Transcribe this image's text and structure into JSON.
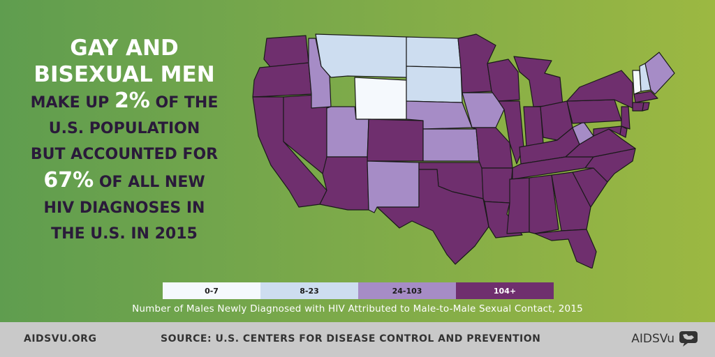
{
  "headline": {
    "line1": "GAY AND",
    "line2": "BISEXUAL MEN",
    "line3_a": "MAKE UP ",
    "line3_b": "2%",
    "line3_c": " OF THE",
    "line4": "U.S. POPULATION",
    "line5": "BUT ACCOUNTED FOR",
    "line6_a": "67%",
    "line6_b": " OF ALL NEW",
    "line7": "HIV DIAGNOSES IN",
    "line8": "THE U.S. IN 2015"
  },
  "colors": {
    "bin1": "#f5f9fd",
    "bin2": "#cdddf0",
    "bin3": "#a68cc6",
    "bin4": "#6f2f6e",
    "text_dark": "#2a1a3a"
  },
  "legend": {
    "bins": [
      {
        "label": "0-7"
      },
      {
        "label": "8-23"
      },
      {
        "label": "24-103"
      },
      {
        "label": "104+"
      }
    ]
  },
  "caption": "Number of Males Newly Diagnosed with HIV Attributed to Male-to-Male Sexual Contact, 2015",
  "footer": {
    "left": "AIDSVU.ORG",
    "source": "SOURCE: U.S. CENTERS FOR DISEASE CONTROL AND PREVENTION",
    "brand": "AIDSVu"
  },
  "map_regions": [
    {
      "state": "WA",
      "bin": 4
    },
    {
      "state": "OR",
      "bin": 4
    },
    {
      "state": "CA",
      "bin": 4
    },
    {
      "state": "NV",
      "bin": 4
    },
    {
      "state": "ID",
      "bin": 3
    },
    {
      "state": "MT",
      "bin": 2
    },
    {
      "state": "WY",
      "bin": 1
    },
    {
      "state": "UT",
      "bin": 3
    },
    {
      "state": "AZ",
      "bin": 4
    },
    {
      "state": "CO",
      "bin": 4
    },
    {
      "state": "NM",
      "bin": 3
    },
    {
      "state": "ND",
      "bin": 2
    },
    {
      "state": "SD",
      "bin": 2
    },
    {
      "state": "NE",
      "bin": 3
    },
    {
      "state": "KS",
      "bin": 3
    },
    {
      "state": "OK",
      "bin": 4
    },
    {
      "state": "TX",
      "bin": 4
    },
    {
      "state": "MN",
      "bin": 4
    },
    {
      "state": "IA",
      "bin": 3
    },
    {
      "state": "MO",
      "bin": 4
    },
    {
      "state": "AR",
      "bin": 4
    },
    {
      "state": "LA",
      "bin": 4
    },
    {
      "state": "WI",
      "bin": 4
    },
    {
      "state": "IL",
      "bin": 4
    },
    {
      "state": "MI",
      "bin": 4
    },
    {
      "state": "IN",
      "bin": 4
    },
    {
      "state": "OH",
      "bin": 4
    },
    {
      "state": "KY",
      "bin": 4
    },
    {
      "state": "TN",
      "bin": 4
    },
    {
      "state": "MS",
      "bin": 4
    },
    {
      "state": "AL",
      "bin": 4
    },
    {
      "state": "GA",
      "bin": 4
    },
    {
      "state": "FL",
      "bin": 4
    },
    {
      "state": "SC",
      "bin": 4
    },
    {
      "state": "NC",
      "bin": 4
    },
    {
      "state": "VA",
      "bin": 4
    },
    {
      "state": "WV",
      "bin": 3
    },
    {
      "state": "PA",
      "bin": 4
    },
    {
      "state": "NY",
      "bin": 4
    },
    {
      "state": "VT",
      "bin": 1
    },
    {
      "state": "NH",
      "bin": 2
    },
    {
      "state": "ME",
      "bin": 3
    },
    {
      "state": "MA",
      "bin": 4
    },
    {
      "state": "CT",
      "bin": 4
    },
    {
      "state": "NJ",
      "bin": 4
    },
    {
      "state": "MD",
      "bin": 4
    },
    {
      "state": "DE",
      "bin": 4
    },
    {
      "state": "RI",
      "bin": 4
    }
  ]
}
